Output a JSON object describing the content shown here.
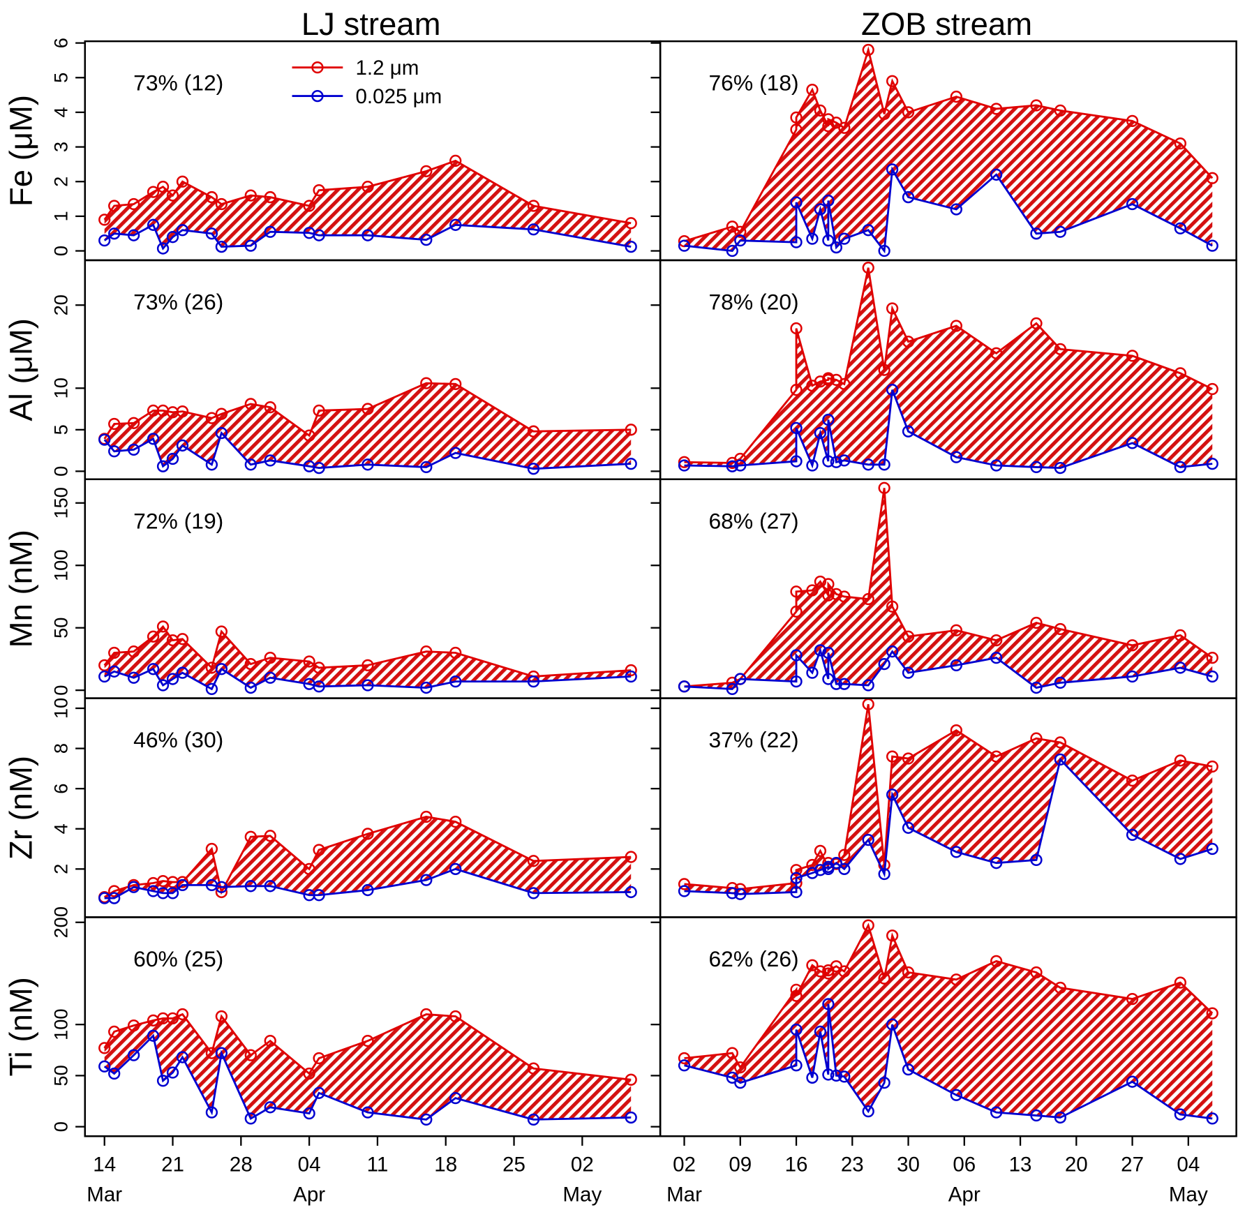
{
  "chart_data": [
    {
      "type": "line",
      "title": "LJ stream",
      "ylabel": "Fe (μM)",
      "annotation": "73% (12)",
      "x": [
        "03-14",
        "03-15",
        "03-17",
        "03-19",
        "03-20",
        "03-21",
        "03-22",
        "03-25",
        "03-26",
        "03-29",
        "03-31",
        "04-04",
        "04-05",
        "04-10",
        "04-16",
        "04-19",
        "04-27",
        "05-07"
      ],
      "xlim": [
        "03-12",
        "05-10"
      ],
      "ylim": [
        -0.27,
        6.05
      ],
      "yticks": [
        0,
        1,
        2,
        3,
        4,
        5,
        6
      ],
      "series": [
        {
          "name": "1.2 μm",
          "color": "#e00000",
          "values": [
            0.9,
            1.3,
            1.35,
            1.7,
            1.85,
            1.6,
            2.0,
            1.55,
            1.35,
            1.6,
            1.55,
            1.3,
            1.75,
            1.85,
            2.3,
            2.6,
            1.3,
            0.8
          ]
        },
        {
          "name": "0.025 μm",
          "color": "#0000d0",
          "values": [
            0.3,
            0.5,
            0.45,
            0.75,
            0.07,
            0.4,
            0.6,
            0.5,
            0.12,
            0.15,
            0.55,
            0.52,
            0.45,
            0.45,
            0.32,
            0.75,
            0.62,
            0.12
          ]
        }
      ]
    },
    {
      "type": "line",
      "title": "ZOB stream",
      "annotation": "76% (18)",
      "x": [
        "03-02",
        "03-08",
        "03-09",
        "03-16",
        "03-16",
        "03-18",
        "03-19",
        "03-20",
        "03-20",
        "03-21",
        "03-22",
        "03-25",
        "03-27",
        "03-28",
        "03-30",
        "04-05",
        "04-10",
        "04-15",
        "04-18",
        "04-27",
        "05-03",
        "05-07"
      ],
      "xlim": [
        "02-27",
        "05-10"
      ],
      "ylim": [
        -0.27,
        6.05
      ],
      "series": [
        {
          "color": "#e00000",
          "values": [
            0.28,
            0.7,
            0.55,
            3.5,
            3.85,
            4.65,
            4.05,
            3.6,
            3.8,
            3.7,
            3.55,
            5.8,
            3.95,
            4.9,
            4.0,
            4.45,
            4.1,
            4.2,
            4.05,
            3.75,
            3.1,
            2.1
          ]
        },
        {
          "color": "#0000d0",
          "values": [
            0.15,
            0.0,
            0.3,
            0.25,
            1.4,
            0.35,
            1.2,
            0.3,
            1.45,
            0.1,
            0.35,
            0.6,
            0.0,
            2.35,
            1.55,
            1.2,
            2.2,
            0.5,
            0.55,
            1.35,
            0.65,
            0.15
          ]
        }
      ]
    },
    {
      "type": "line",
      "ylabel": "Al (μM)",
      "annotation": "73% (26)",
      "x": [
        "03-14",
        "03-15",
        "03-17",
        "03-19",
        "03-20",
        "03-21",
        "03-22",
        "03-25",
        "03-26",
        "03-29",
        "03-31",
        "04-04",
        "04-05",
        "04-10",
        "04-16",
        "04-19",
        "04-27",
        "05-07"
      ],
      "xlim": [
        "03-12",
        "05-10"
      ],
      "ylim": [
        -0.96,
        25.4
      ],
      "yticks": [
        0,
        5,
        10,
        20
      ],
      "series": [
        {
          "color": "#e00000",
          "values": [
            3.9,
            5.7,
            5.8,
            7.3,
            7.3,
            7.1,
            7.2,
            6.4,
            6.9,
            8.1,
            7.7,
            4.3,
            7.3,
            7.5,
            10.6,
            10.5,
            4.8,
            5.0
          ]
        },
        {
          "color": "#0000d0",
          "values": [
            3.8,
            2.4,
            2.6,
            3.9,
            0.6,
            1.5,
            3.1,
            0.8,
            4.6,
            0.8,
            1.3,
            0.6,
            0.4,
            0.8,
            0.5,
            2.2,
            0.3,
            0.9
          ]
        }
      ]
    },
    {
      "type": "line",
      "annotation": "78% (20)",
      "x": [
        "03-02",
        "03-08",
        "03-09",
        "03-16",
        "03-16",
        "03-18",
        "03-19",
        "03-20",
        "03-20",
        "03-21",
        "03-22",
        "03-25",
        "03-27",
        "03-28",
        "03-30",
        "04-05",
        "04-10",
        "04-15",
        "04-18",
        "04-27",
        "05-03",
        "05-07"
      ],
      "xlim": [
        "02-27",
        "05-10"
      ],
      "ylim": [
        -0.96,
        25.4
      ],
      "series": [
        {
          "color": "#e00000",
          "values": [
            1.1,
            1.0,
            1.5,
            9.8,
            17.2,
            10.3,
            10.8,
            11,
            11.2,
            11,
            10.5,
            24.5,
            12.2,
            19.6,
            15.6,
            17.5,
            14.2,
            17.8,
            14.7,
            13.9,
            11.8,
            9.9
          ]
        },
        {
          "color": "#0000d0",
          "values": [
            0.7,
            0.6,
            0.7,
            1.2,
            5.2,
            0.7,
            4.6,
            1.2,
            6.2,
            1.1,
            1.3,
            0.8,
            0.8,
            9.8,
            4.8,
            1.7,
            0.7,
            0.5,
            0.4,
            3.4,
            0.5,
            0.9
          ]
        }
      ]
    },
    {
      "type": "line",
      "ylabel": "Mn (nM)",
      "annotation": "72% (19)",
      "x": [
        "03-14",
        "03-15",
        "03-17",
        "03-19",
        "03-20",
        "03-21",
        "03-22",
        "03-25",
        "03-26",
        "03-29",
        "03-31",
        "04-04",
        "04-05",
        "04-10",
        "04-16",
        "04-19",
        "04-27",
        "05-07"
      ],
      "xlim": [
        "03-12",
        "05-10"
      ],
      "ylim": [
        -6.4,
        169
      ],
      "yticks": [
        0,
        50,
        100,
        150
      ],
      "series": [
        {
          "color": "#e00000",
          "values": [
            20,
            30,
            31,
            43,
            51,
            40,
            41,
            18,
            47,
            21,
            26,
            23,
            18,
            20,
            31,
            30,
            11,
            16
          ]
        },
        {
          "color": "#0000d0",
          "values": [
            11,
            15,
            10,
            17,
            4,
            9,
            14,
            1,
            17,
            2,
            10,
            5,
            3,
            4,
            2,
            7,
            7,
            11
          ]
        }
      ]
    },
    {
      "type": "line",
      "annotation": "68% (27)",
      "x": [
        "03-02",
        "03-08",
        "03-09",
        "03-16",
        "03-16",
        "03-18",
        "03-19",
        "03-20",
        "03-20",
        "03-21",
        "03-22",
        "03-25",
        "03-27",
        "03-28",
        "03-30",
        "04-05",
        "04-10",
        "04-15",
        "04-18",
        "04-27",
        "05-03",
        "05-07"
      ],
      "xlim": [
        "02-27",
        "05-10"
      ],
      "ylim": [
        -6.4,
        169
      ],
      "series": [
        {
          "color": "#e00000",
          "values": [
            3,
            6,
            9,
            63,
            79,
            80,
            87,
            76,
            85,
            77,
            75,
            73,
            162,
            67,
            43,
            48,
            40,
            54,
            49,
            36,
            44,
            26
          ]
        },
        {
          "color": "#0000d0",
          "values": [
            3,
            1,
            9,
            7,
            28,
            14,
            32,
            9,
            30,
            5,
            5,
            4,
            21,
            31,
            14,
            20,
            26,
            2,
            6,
            11,
            18,
            11
          ]
        }
      ]
    },
    {
      "type": "line",
      "ylabel": "Zr (nM)",
      "annotation": "46% (30)",
      "x": [
        "03-14",
        "03-15",
        "03-17",
        "03-19",
        "03-20",
        "03-21",
        "03-22",
        "03-25",
        "03-26",
        "03-29",
        "03-31",
        "04-04",
        "04-05",
        "04-10",
        "04-16",
        "04-19",
        "04-27",
        "05-07"
      ],
      "xlim": [
        "03-12",
        "05-10"
      ],
      "ylim": [
        -0.4,
        10.5
      ],
      "yticks": [
        2,
        4,
        6,
        8,
        10
      ],
      "series": [
        {
          "color": "#e00000",
          "values": [
            0.6,
            0.9,
            1.2,
            1.3,
            1.4,
            1.35,
            1.35,
            3.0,
            0.85,
            3.6,
            3.65,
            2.0,
            2.95,
            3.75,
            4.6,
            4.35,
            2.4,
            2.6
          ]
        },
        {
          "color": "#0000d0",
          "values": [
            0.55,
            0.55,
            1.1,
            0.9,
            0.8,
            0.8,
            1.2,
            1.2,
            1.1,
            1.15,
            1.15,
            0.7,
            0.7,
            0.95,
            1.45,
            2.0,
            0.8,
            0.85
          ]
        }
      ]
    },
    {
      "type": "line",
      "annotation": "37% (22)",
      "x": [
        "03-02",
        "03-08",
        "03-09",
        "03-16",
        "03-16",
        "03-18",
        "03-19",
        "03-20",
        "03-20",
        "03-21",
        "03-22",
        "03-25",
        "03-27",
        "03-28",
        "03-30",
        "04-05",
        "04-10",
        "04-15",
        "04-18",
        "04-27",
        "05-03",
        "05-07"
      ],
      "xlim": [
        "02-27",
        "05-10"
      ],
      "ylim": [
        -0.4,
        10.5
      ],
      "series": [
        {
          "color": "#e00000",
          "values": [
            1.25,
            1.05,
            1.0,
            1.3,
            1.95,
            2.2,
            2.9,
            2.1,
            2.3,
            2.25,
            2.7,
            10.2,
            2.2,
            7.6,
            7.5,
            8.9,
            7.6,
            8.5,
            8.3,
            6.4,
            7.4,
            7.1
          ]
        },
        {
          "color": "#0000d0",
          "values": [
            0.9,
            0.8,
            0.75,
            0.85,
            1.55,
            1.8,
            1.95,
            2.1,
            2.0,
            2.3,
            2.0,
            3.45,
            1.75,
            5.7,
            4.05,
            2.85,
            2.3,
            2.45,
            7.45,
            3.7,
            2.5,
            3.0
          ]
        }
      ]
    },
    {
      "type": "line",
      "ylabel": "Ti (nM)",
      "annotation": "60% (25)",
      "x": [
        "03-14",
        "03-15",
        "03-17",
        "03-19",
        "03-20",
        "03-21",
        "03-22",
        "03-25",
        "03-26",
        "03-29",
        "03-31",
        "04-04",
        "04-05",
        "04-10",
        "04-16",
        "04-19",
        "04-27",
        "05-07"
      ],
      "xlim": [
        "03-12",
        "05-10"
      ],
      "ylim": [
        -9.3,
        205
      ],
      "yticks": [
        0,
        50,
        100,
        200
      ],
      "xticks": [
        {
          "value": "03-14",
          "label": "14"
        },
        {
          "value": "03-21",
          "label": "21"
        },
        {
          "value": "03-28",
          "label": "28"
        },
        {
          "value": "04-04",
          "label": "04"
        },
        {
          "value": "04-11",
          "label": "11"
        },
        {
          "value": "04-18",
          "label": "18"
        },
        {
          "value": "04-25",
          "label": "25"
        },
        {
          "value": "05-02",
          "label": "02"
        }
      ],
      "month_ticks": [
        {
          "value": "03-14",
          "label": "Mar"
        },
        {
          "value": "04-04",
          "label": "Apr"
        },
        {
          "value": "05-02",
          "label": "May"
        }
      ],
      "series": [
        {
          "color": "#e00000",
          "values": [
            77,
            93,
            99,
            104,
            106,
            106,
            110,
            72,
            108,
            70,
            84,
            52,
            67,
            84,
            110,
            108,
            57,
            46
          ]
        },
        {
          "color": "#0000d0",
          "values": [
            59,
            52,
            70,
            89,
            45,
            53,
            68,
            14,
            72,
            8,
            19,
            13,
            33,
            14,
            7,
            28,
            7,
            9
          ]
        }
      ]
    },
    {
      "type": "line",
      "annotation": "62% (26)",
      "x": [
        "03-02",
        "03-08",
        "03-09",
        "03-16",
        "03-16",
        "03-18",
        "03-19",
        "03-20",
        "03-20",
        "03-21",
        "03-22",
        "03-25",
        "03-27",
        "03-28",
        "03-30",
        "04-05",
        "04-10",
        "04-15",
        "04-18",
        "04-27",
        "05-03",
        "05-07"
      ],
      "xlim": [
        "02-27",
        "05-10"
      ],
      "ylim": [
        -9.3,
        205
      ],
      "xticks": [
        {
          "value": "03-02",
          "label": "02"
        },
        {
          "value": "03-09",
          "label": "09"
        },
        {
          "value": "03-16",
          "label": "16"
        },
        {
          "value": "03-23",
          "label": "23"
        },
        {
          "value": "03-30",
          "label": "30"
        },
        {
          "value": "04-06",
          "label": "06"
        },
        {
          "value": "04-13",
          "label": "13"
        },
        {
          "value": "04-20",
          "label": "20"
        },
        {
          "value": "04-27",
          "label": "27"
        },
        {
          "value": "05-04",
          "label": "04"
        }
      ],
      "month_ticks": [
        {
          "value": "03-02",
          "label": "Mar"
        },
        {
          "value": "04-06",
          "label": "Apr"
        },
        {
          "value": "05-04",
          "label": "May"
        }
      ],
      "series": [
        {
          "color": "#e00000",
          "values": [
            67,
            72,
            58,
            134,
            128,
            158,
            152,
            150,
            153,
            157,
            152,
            197,
            145,
            187,
            151,
            144,
            162,
            151,
            136,
            125,
            141,
            111
          ]
        },
        {
          "color": "#0000d0",
          "values": [
            60,
            48,
            43,
            60,
            95,
            48,
            93,
            51,
            120,
            50,
            49,
            15,
            43,
            100,
            56,
            31,
            14,
            11,
            9,
            44,
            12,
            8
          ]
        }
      ]
    }
  ]
}
